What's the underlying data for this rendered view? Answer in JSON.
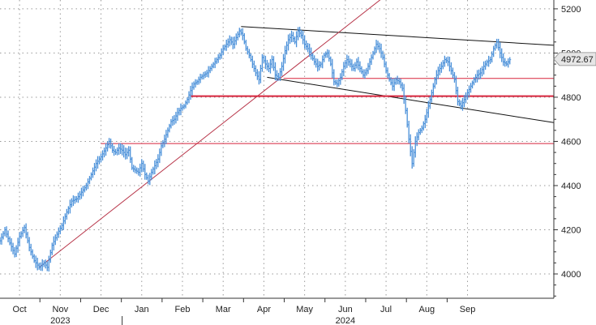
{
  "chart_data": {
    "type": "line",
    "series_style": "ohlc-bars",
    "title": "",
    "xlabel": "",
    "ylabel": "",
    "ylim": [
      3890,
      5240
    ],
    "y_ticks": [
      4000,
      4200,
      4400,
      4600,
      4800,
      5000,
      5200
    ],
    "y_tick_labels": [
      "4000",
      "4200",
      "4400",
      "4600",
      "4800",
      "5000",
      "5200"
    ],
    "y_axis_position": "right",
    "grid": "dotted",
    "x_tick_labels": [
      "Oct",
      "Nov",
      "Dec",
      "Jan",
      "Feb",
      "Mar",
      "Apr",
      "May",
      "Jun",
      "Jul",
      "Aug",
      "Sep"
    ],
    "year_labels": [
      "2023",
      "2024"
    ],
    "last_value": 4972.67,
    "last_value_label": "4972.67",
    "colors": {
      "price": "#4a90d9",
      "trendline_black": "#111111",
      "support_red": "#d8243c",
      "uptrend": "#b8364a",
      "grid": "#999999"
    },
    "price_path": [
      [
        0,
        4150
      ],
      [
        3,
        4200
      ],
      [
        6,
        4140
      ],
      [
        9,
        4090
      ],
      [
        12,
        4170
      ],
      [
        15,
        4210
      ],
      [
        18,
        4120
      ],
      [
        21,
        4060
      ],
      [
        24,
        4030
      ],
      [
        27,
        4050
      ],
      [
        29,
        4030
      ],
      [
        32,
        4130
      ],
      [
        35,
        4180
      ],
      [
        38,
        4220
      ],
      [
        41,
        4280
      ],
      [
        44,
        4330
      ],
      [
        47,
        4340
      ],
      [
        50,
        4370
      ],
      [
        53,
        4400
      ],
      [
        56,
        4450
      ],
      [
        59,
        4500
      ],
      [
        62,
        4530
      ],
      [
        65,
        4570
      ],
      [
        67,
        4600
      ],
      [
        69,
        4560
      ],
      [
        71,
        4550
      ],
      [
        73,
        4570
      ],
      [
        75,
        4560
      ],
      [
        77,
        4540
      ],
      [
        79,
        4560
      ],
      [
        81,
        4480
      ],
      [
        83,
        4470
      ],
      [
        85,
        4460
      ],
      [
        87,
        4500
      ],
      [
        89,
        4450
      ],
      [
        91,
        4420
      ],
      [
        93,
        4460
      ],
      [
        95,
        4490
      ],
      [
        97,
        4520
      ],
      [
        99,
        4580
      ],
      [
        101,
        4610
      ],
      [
        103,
        4650
      ],
      [
        105,
        4690
      ],
      [
        107,
        4700
      ],
      [
        109,
        4730
      ],
      [
        111,
        4750
      ],
      [
        113,
        4760
      ],
      [
        115,
        4790
      ],
      [
        117,
        4830
      ],
      [
        119,
        4860
      ],
      [
        121,
        4870
      ],
      [
        123,
        4890
      ],
      [
        125,
        4900
      ],
      [
        127,
        4910
      ],
      [
        129,
        4930
      ],
      [
        131,
        4950
      ],
      [
        133,
        4970
      ],
      [
        135,
        4990
      ],
      [
        137,
        5020
      ],
      [
        139,
        5040
      ],
      [
        141,
        5060
      ],
      [
        143,
        5040
      ],
      [
        145,
        5070
      ],
      [
        147,
        5100
      ],
      [
        149,
        5080
      ],
      [
        151,
        5020
      ],
      [
        153,
        4990
      ],
      [
        155,
        4950
      ],
      [
        157,
        4910
      ],
      [
        159,
        4880
      ],
      [
        161,
        4980
      ],
      [
        163,
        4950
      ],
      [
        165,
        4930
      ],
      [
        167,
        4970
      ],
      [
        169,
        4900
      ],
      [
        171,
        4890
      ],
      [
        173,
        4940
      ],
      [
        175,
        5010
      ],
      [
        177,
        5060
      ],
      [
        179,
        5080
      ],
      [
        181,
        5050
      ],
      [
        183,
        5100
      ],
      [
        185,
        5080
      ],
      [
        187,
        5040
      ],
      [
        189,
        5020
      ],
      [
        191,
        4990
      ],
      [
        193,
        4960
      ],
      [
        195,
        4940
      ],
      [
        197,
        4950
      ],
      [
        199,
        4990
      ],
      [
        201,
        5000
      ],
      [
        203,
        4950
      ],
      [
        205,
        4870
      ],
      [
        207,
        4860
      ],
      [
        209,
        4890
      ],
      [
        211,
        4940
      ],
      [
        213,
        4970
      ],
      [
        215,
        4950
      ],
      [
        217,
        4930
      ],
      [
        219,
        4960
      ],
      [
        221,
        4930
      ],
      [
        223,
        4900
      ],
      [
        225,
        4920
      ],
      [
        227,
        4960
      ],
      [
        229,
        5000
      ],
      [
        231,
        5040
      ],
      [
        233,
        5020
      ],
      [
        235,
        4980
      ],
      [
        237,
        4920
      ],
      [
        239,
        4880
      ],
      [
        241,
        4850
      ],
      [
        243,
        4880
      ],
      [
        245,
        4870
      ],
      [
        247,
        4840
      ],
      [
        249,
        4740
      ],
      [
        251,
        4610
      ],
      [
        253,
        4500
      ],
      [
        255,
        4600
      ],
      [
        257,
        4640
      ],
      [
        259,
        4660
      ],
      [
        261,
        4700
      ],
      [
        263,
        4760
      ],
      [
        265,
        4820
      ],
      [
        267,
        4880
      ],
      [
        269,
        4920
      ],
      [
        271,
        4940
      ],
      [
        273,
        4970
      ],
      [
        275,
        4960
      ],
      [
        277,
        4920
      ],
      [
        279,
        4880
      ],
      [
        281,
        4780
      ],
      [
        283,
        4760
      ],
      [
        285,
        4790
      ],
      [
        287,
        4820
      ],
      [
        289,
        4850
      ],
      [
        291,
        4880
      ],
      [
        293,
        4900
      ],
      [
        295,
        4910
      ],
      [
        297,
        4940
      ],
      [
        299,
        4960
      ],
      [
        301,
        4970
      ],
      [
        303,
        5020
      ],
      [
        305,
        5050
      ],
      [
        307,
        5000
      ],
      [
        309,
        4960
      ],
      [
        311,
        4950
      ],
      [
        313,
        4970
      ]
    ],
    "x_index_range": [
      0,
      340
    ],
    "x_tick_positions": [
      12,
      37,
      62,
      87,
      112,
      137,
      162,
      187,
      212,
      237,
      262,
      287
    ],
    "annotations": [
      {
        "type": "line",
        "color": "trendline_black",
        "from": [
          148,
          5120
        ],
        "to": [
          340,
          5035
        ]
      },
      {
        "type": "line",
        "color": "trendline_black",
        "from": [
          164,
          4890
        ],
        "to": [
          340,
          4685
        ]
      },
      {
        "type": "line",
        "color": "uptrend",
        "from": [
          24,
          4030
        ],
        "to": [
          235,
          5250
        ]
      },
      {
        "type": "hline",
        "color": "support_red",
        "y": 4590,
        "from_x": 62,
        "to_x": 340,
        "width": 1
      },
      {
        "type": "hline",
        "color": "support_red",
        "y": 4805,
        "from_x": 117,
        "to_x": 340,
        "width": 2
      },
      {
        "type": "hline",
        "color": "support_red",
        "y": 4885,
        "from_x": 174,
        "to_x": 340,
        "width": 1
      }
    ]
  }
}
